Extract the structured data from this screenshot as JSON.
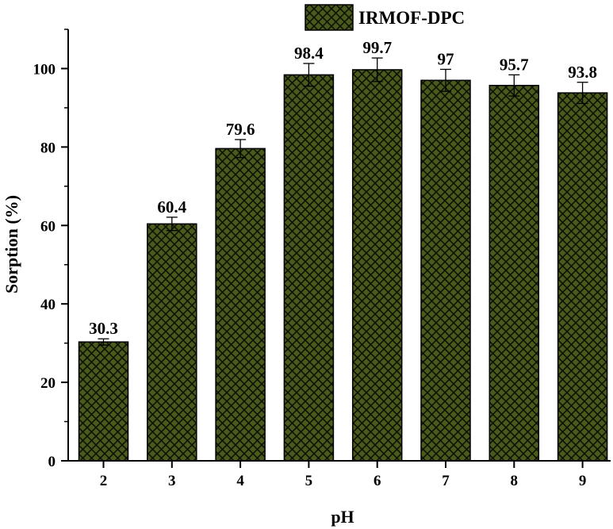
{
  "chart_data": {
    "type": "bar",
    "xlabel": "pH",
    "ylabel": "Sorption (%)",
    "categories": [
      "2",
      "3",
      "4",
      "5",
      "6",
      "7",
      "8",
      "9"
    ],
    "series": [
      {
        "name": "IRMOF-DPC",
        "values": [
          30.3,
          60.4,
          79.6,
          98.4,
          99.7,
          97,
          95.7,
          93.8
        ],
        "errors": [
          0.8,
          1.7,
          2.3,
          2.9,
          3.0,
          2.8,
          2.7,
          2.7
        ],
        "data_labels": [
          "30.3",
          "60.4",
          "79.6",
          "98.4",
          "99.7",
          "97",
          "95.7",
          "93.8"
        ]
      }
    ],
    "ylim": [
      0,
      110
    ],
    "yticks": [
      "0",
      "20",
      "40",
      "60",
      "80",
      "100"
    ],
    "ytick_values": [
      0,
      20,
      40,
      60,
      80,
      100
    ],
    "grid": false,
    "legend_position": "top-center",
    "bar_color": "#4a5a1c",
    "hatch": "crosshatch"
  }
}
